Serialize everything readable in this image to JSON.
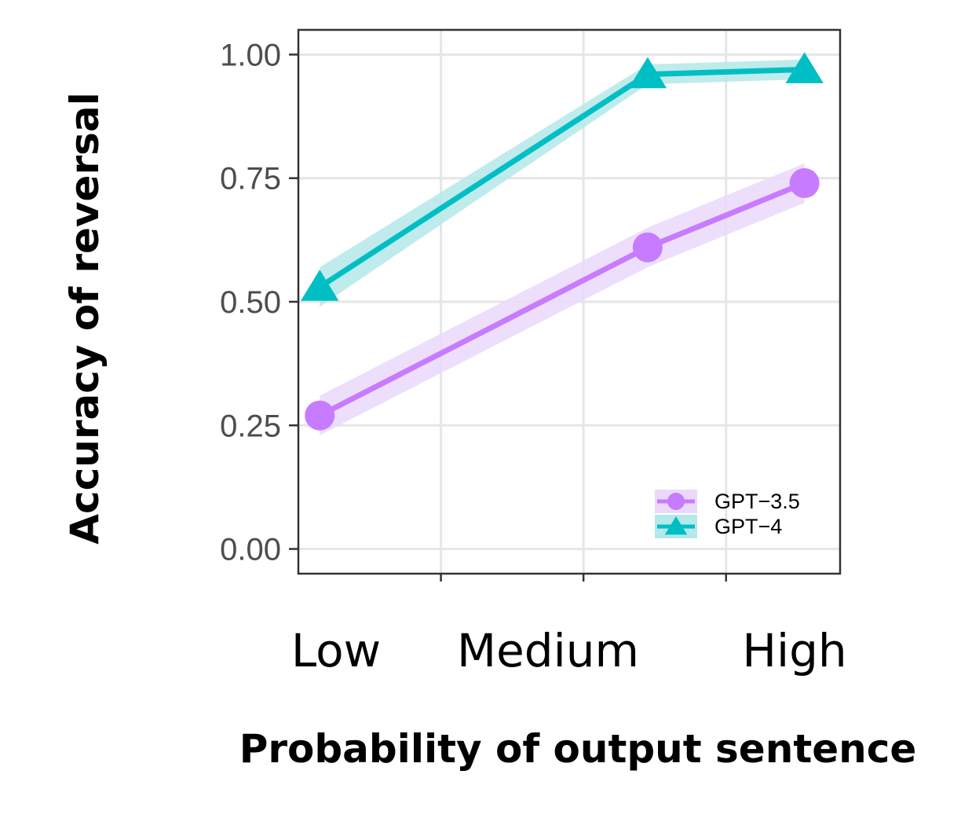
{
  "chart_data": {
    "type": "line",
    "x_tick_labels": [
      "Low",
      "Medium",
      "High"
    ],
    "xlabel": "Probability of output sentence",
    "ylabel": "Accuracy of reversal",
    "ylim": [
      -0.05,
      1.05
    ],
    "y_ticks": [
      0.0,
      0.25,
      0.5,
      0.75,
      1.0
    ],
    "y_tick_labels": [
      "0.00",
      "0.25",
      "0.50",
      "0.75",
      "1.00"
    ],
    "grid": true,
    "legend_position": "bottom-right",
    "series": [
      {
        "name": "GPT−3.5",
        "color": "#c77cff",
        "band_color": "#ead9fb",
        "marker": "circle",
        "x": [
          0.15,
          2.45,
          3.55
        ],
        "y": [
          0.27,
          0.61,
          0.74
        ],
        "ci_low": [
          0.23,
          0.57,
          0.7
        ],
        "ci_high": [
          0.31,
          0.65,
          0.78
        ]
      },
      {
        "name": "GPT−4",
        "color": "#00bfc4",
        "band_color": "#b4e8e9",
        "marker": "triangle",
        "x": [
          0.15,
          2.45,
          3.55
        ],
        "y": [
          0.53,
          0.96,
          0.97
        ],
        "ci_low": [
          0.49,
          0.94,
          0.95
        ],
        "ci_high": [
          0.57,
          0.98,
          0.99
        ]
      }
    ]
  }
}
